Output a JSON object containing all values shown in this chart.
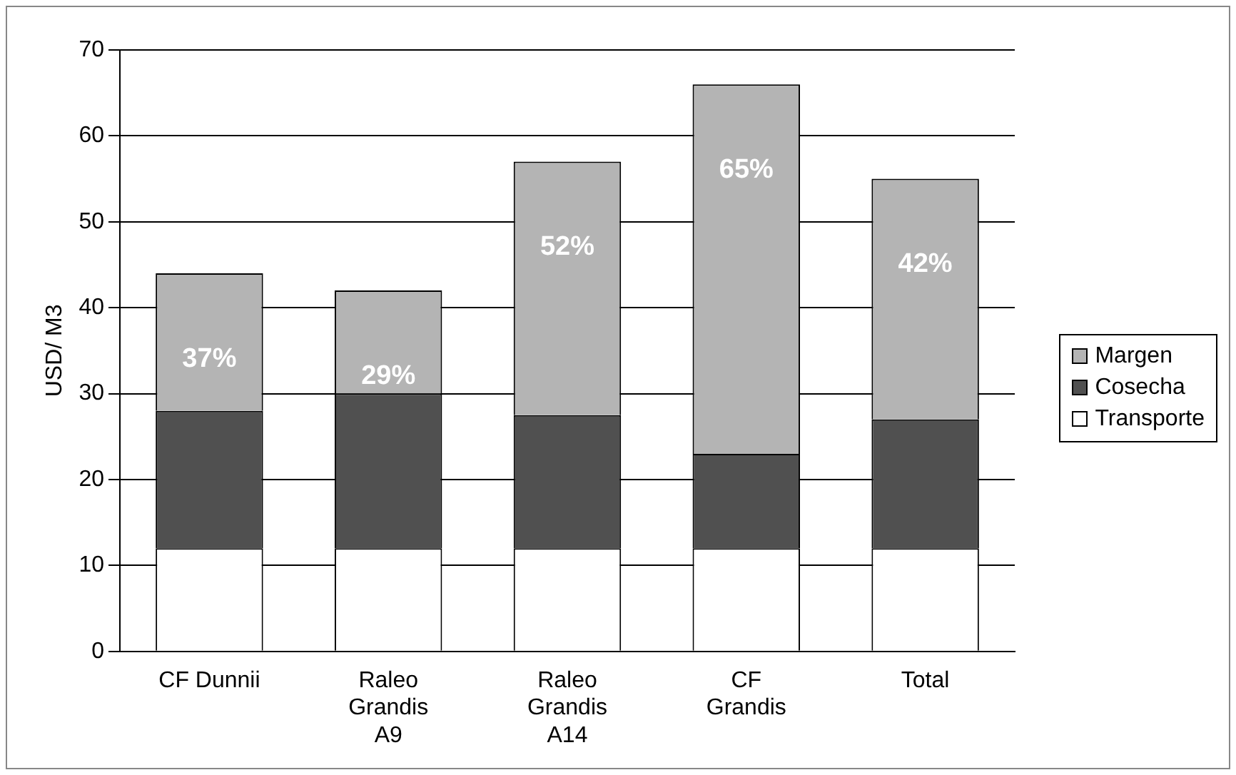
{
  "chart_data": {
    "type": "bar",
    "stacked": true,
    "ylabel": "USD/ M3",
    "categories": [
      "CF Dunnii",
      "Raleo\nGrandis\nA9",
      "Raleo\nGrandis\nA14",
      "CF\nGrandis",
      "Total"
    ],
    "ylim": [
      0,
      70
    ],
    "yticks": [
      0,
      10,
      20,
      30,
      40,
      50,
      60,
      70
    ],
    "grid": "y",
    "legend": "right",
    "series": [
      {
        "name": "Transporte",
        "color": "#ffffff",
        "values": [
          12,
          12,
          12,
          12,
          12
        ]
      },
      {
        "name": "Cosecha",
        "color": "#505050",
        "values": [
          16,
          18,
          15.5,
          11,
          15
        ]
      },
      {
        "name": "Margen",
        "color": "#b4b4b4",
        "values": [
          16,
          12,
          29.5,
          43,
          28
        ]
      }
    ],
    "annotations": [
      "37%",
      "29%",
      "52%",
      "65%",
      "42%"
    ]
  }
}
